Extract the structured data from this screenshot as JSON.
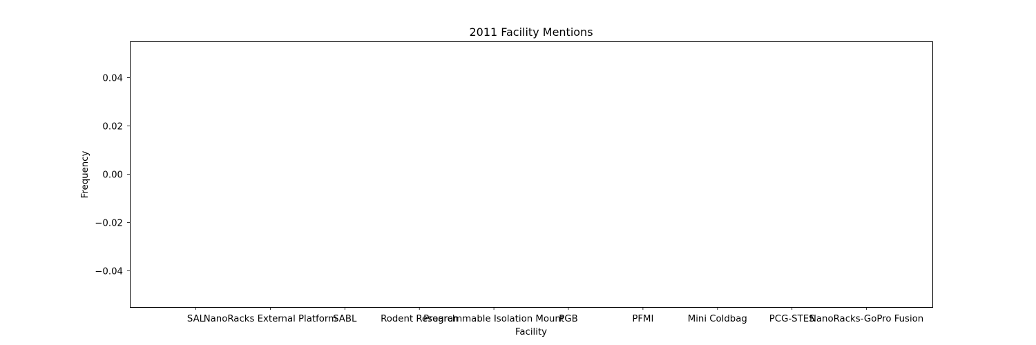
{
  "chart_data": {
    "type": "bar",
    "title": "2011 Facility Mentions",
    "xlabel": "Facility",
    "ylabel": "Frequency",
    "categories": [
      "SAL",
      "NanoRacks External Platform",
      "SABL",
      "Rodent Research",
      "Programmable Isolation Mount",
      "PGB",
      "PFMI",
      "Mini Coldbag",
      "PCG-STES",
      "NanoRacks-GoPro Fusion"
    ],
    "values": [
      0,
      0,
      0,
      0,
      0,
      0,
      0,
      0,
      0,
      0
    ],
    "ylim": [
      -0.055,
      0.055
    ],
    "yticks": [
      -0.04,
      -0.02,
      0.0,
      0.02,
      0.04
    ],
    "ytick_labels": [
      "−0.04",
      "−0.02",
      "0.00",
      "0.02",
      "0.04"
    ],
    "grid": false,
    "colors": {
      "bar": "#1f77b4",
      "axis": "#000000",
      "background": "#ffffff"
    }
  }
}
